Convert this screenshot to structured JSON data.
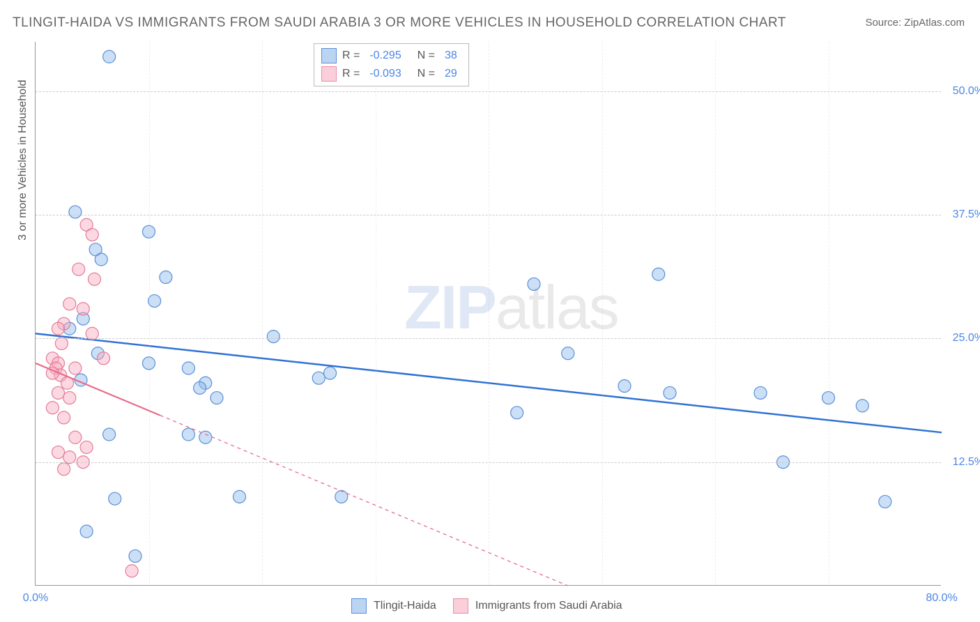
{
  "title": "TLINGIT-HAIDA VS IMMIGRANTS FROM SAUDI ARABIA 3 OR MORE VEHICLES IN HOUSEHOLD CORRELATION CHART",
  "source": "Source: ZipAtlas.com",
  "ylabel": "3 or more Vehicles in Household",
  "watermark": {
    "bold": "ZIP",
    "light": "atlas"
  },
  "chart": {
    "type": "scatter-with-regression",
    "xlim": [
      0,
      80
    ],
    "ylim": [
      0,
      55
    ],
    "x_ticks": [
      0,
      80
    ],
    "x_tick_labels": [
      "0.0%",
      "80.0%"
    ],
    "y_ticks": [
      12.5,
      25.0,
      37.5,
      50.0
    ],
    "y_tick_labels": [
      "12.5%",
      "25.0%",
      "37.5%",
      "50.0%"
    ],
    "background_color": "#ffffff",
    "grid_color": "#cccccc",
    "axis_color": "#999999",
    "marker_radius": 9,
    "marker_stroke_width": 1.2,
    "series": [
      {
        "name": "Tlingit-Haida",
        "color_fill": "rgba(140,185,235,0.45)",
        "color_stroke": "#5b8fd6",
        "line_color": "#2f72d4",
        "line_width": 2.5,
        "line_dash": "none",
        "R": -0.295,
        "N": 38,
        "reg_line": {
          "x1": 0,
          "y1": 25.5,
          "x2": 80,
          "y2": 15.5
        },
        "reg_solid_to_x": 80,
        "points": [
          [
            6.5,
            53.5
          ],
          [
            3.5,
            37.8
          ],
          [
            10,
            35.8
          ],
          [
            5.3,
            34.0
          ],
          [
            5.8,
            33.0
          ],
          [
            11.5,
            31.2
          ],
          [
            10.5,
            28.8
          ],
          [
            4.2,
            27.0
          ],
          [
            3.0,
            26.0
          ],
          [
            21.0,
            25.2
          ],
          [
            5.5,
            23.5
          ],
          [
            10.0,
            22.5
          ],
          [
            13.5,
            22.0
          ],
          [
            4.0,
            20.8
          ],
          [
            15.0,
            20.5
          ],
          [
            14.5,
            20.0
          ],
          [
            16.0,
            19.0
          ],
          [
            26.0,
            21.5
          ],
          [
            25.0,
            21.0
          ],
          [
            6.5,
            15.3
          ],
          [
            13.5,
            15.3
          ],
          [
            15.0,
            15.0
          ],
          [
            18.0,
            9.0
          ],
          [
            7.0,
            8.8
          ],
          [
            4.5,
            5.5
          ],
          [
            8.8,
            3.0
          ],
          [
            44.0,
            30.5
          ],
          [
            47.0,
            23.5
          ],
          [
            55.0,
            31.5
          ],
          [
            52.0,
            20.2
          ],
          [
            56.0,
            19.5
          ],
          [
            64.0,
            19.5
          ],
          [
            66.0,
            12.5
          ],
          [
            70.0,
            19.0
          ],
          [
            73.0,
            18.2
          ],
          [
            75.0,
            8.5
          ],
          [
            27.0,
            9.0
          ],
          [
            42.5,
            17.5
          ]
        ]
      },
      {
        "name": "Immigrants from Saudi Arabia",
        "color_fill": "rgba(248,170,190,0.45)",
        "color_stroke": "#e37b96",
        "line_color": "#e86b8a",
        "line_width": 2.2,
        "line_dash": "5,5",
        "R": -0.093,
        "N": 29,
        "reg_line": {
          "x1": 0,
          "y1": 22.5,
          "x2": 47,
          "y2": 0
        },
        "reg_solid_to_x": 11,
        "points": [
          [
            4.5,
            36.5
          ],
          [
            5.0,
            35.5
          ],
          [
            3.8,
            32.0
          ],
          [
            5.2,
            31.0
          ],
          [
            3.0,
            28.5
          ],
          [
            4.2,
            28.0
          ],
          [
            2.5,
            26.5
          ],
          [
            2.0,
            26.0
          ],
          [
            5.0,
            25.5
          ],
          [
            2.3,
            24.5
          ],
          [
            1.5,
            23.0
          ],
          [
            2.0,
            22.5
          ],
          [
            1.8,
            22.0
          ],
          [
            3.5,
            22.0
          ],
          [
            2.2,
            21.3
          ],
          [
            1.5,
            21.5
          ],
          [
            2.8,
            20.5
          ],
          [
            2.0,
            19.5
          ],
          [
            3.0,
            19.0
          ],
          [
            1.5,
            18.0
          ],
          [
            2.5,
            17.0
          ],
          [
            3.5,
            15.0
          ],
          [
            4.5,
            14.0
          ],
          [
            2.0,
            13.5
          ],
          [
            3.0,
            13.0
          ],
          [
            4.2,
            12.5
          ],
          [
            2.5,
            11.8
          ],
          [
            8.5,
            1.5
          ],
          [
            6.0,
            23.0
          ]
        ]
      }
    ]
  },
  "legend_top": [
    {
      "swatch": "blue",
      "R": "-0.295",
      "N": "38"
    },
    {
      "swatch": "pink",
      "R": "-0.093",
      "N": "29"
    }
  ],
  "legend_bottom": [
    {
      "swatch": "blue",
      "label": "Tlingit-Haida"
    },
    {
      "swatch": "pink",
      "label": "Immigrants from Saudi Arabia"
    }
  ]
}
